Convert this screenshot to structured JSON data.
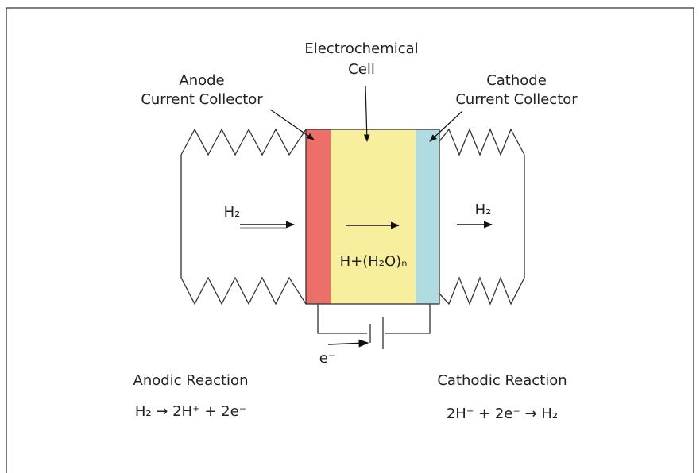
{
  "diagram": {
    "cell_label": [
      "Electrochemical",
      "Cell"
    ],
    "anode_collector_label": [
      "Anode",
      "Current Collector"
    ],
    "cathode_collector_label": [
      "Cathode",
      "Current Collector"
    ],
    "inlet_gas": "H₂",
    "outlet_gas": "H₂",
    "membrane_species": "H+(H₂O)ₙ",
    "electron": "e⁻",
    "anodic": {
      "title": "Anodic Reaction",
      "equation": "H₂ → 2H⁺ + 2e⁻"
    },
    "cathodic": {
      "title": "Cathodic Reaction",
      "equation": "2H⁺ + 2e⁻ → H₂"
    }
  }
}
